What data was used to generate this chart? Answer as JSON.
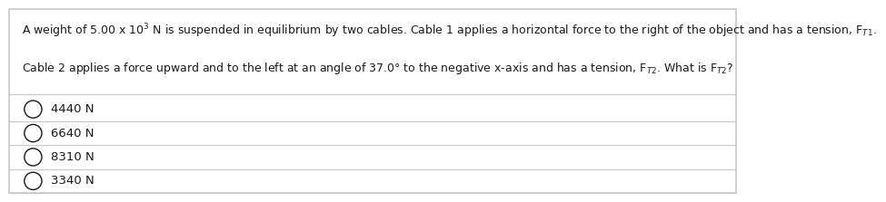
{
  "background_color": "#ffffff",
  "border_color": "#c8c8c8",
  "options": [
    "4440 N",
    "6640 N",
    "8310 N",
    "3340 N"
  ],
  "divider_color": "#c8c8c8",
  "text_color": "#1a1a1a",
  "font_size": 9.0,
  "option_font_size": 9.5,
  "line1": "A weight of 5.00 x 10$^3$ N is suspended in equilibrium by two cables. Cable 1 applies a horizontal force to the right of the object and has a tension, F$_{T1}$.",
  "line2": "Cable 2 applies a force upward and to the left at an angle of 37.0° to the negative x-axis and has a tension, F$_{T2}$. What is F$_{T2}$?"
}
